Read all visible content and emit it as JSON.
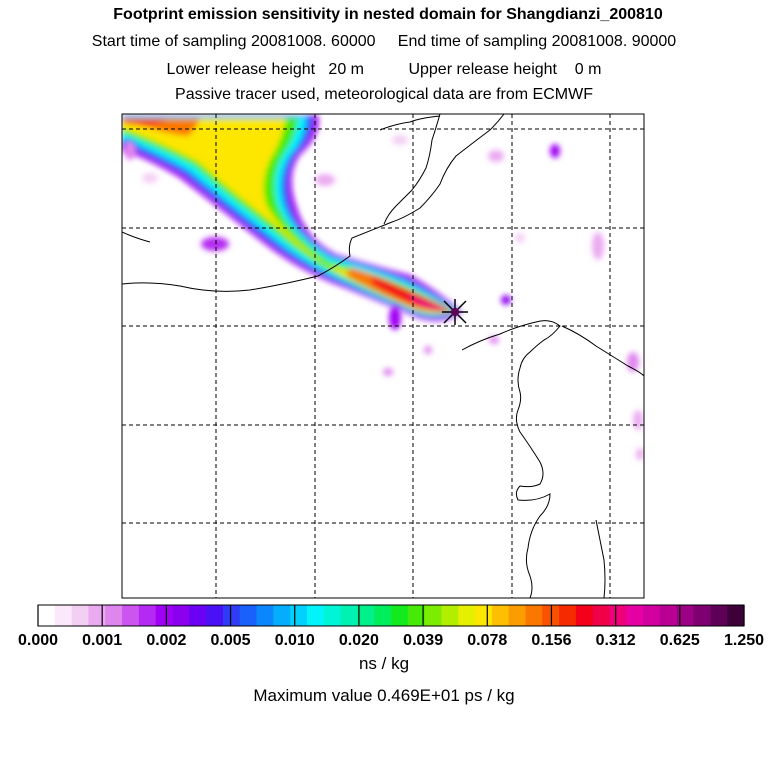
{
  "title": "Footprint emission sensitivity in nested domain for Shangdianzi_200810",
  "header": {
    "start_label": "Start time of sampling 20081008. 60000",
    "end_label": "End time of sampling 20081008. 90000",
    "lower_label": "Lower release height   20 m",
    "upper_label": "Upper release height    0 m",
    "tracer_note": "Passive tracer used, meteorological data are from ECMWF"
  },
  "colorbar": {
    "tick_labels": [
      "0.000",
      "0.001",
      "0.002",
      "0.005",
      "0.010",
      "0.020",
      "0.039",
      "0.078",
      "0.156",
      "0.312",
      "0.625",
      "1.250"
    ],
    "unit": "ns / kg",
    "colors": [
      "#ffffff",
      "#fbe8fb",
      "#f4cff4",
      "#eaaaf0",
      "#df86ee",
      "#cc55f0",
      "#b52af2",
      "#a000f4",
      "#8c00f0",
      "#6a00f4",
      "#4a10f6",
      "#2e3cf8",
      "#1a60fa",
      "#0a88fb",
      "#04aefc",
      "#00d2fd",
      "#00f4fa",
      "#00f4d8",
      "#00f2b2",
      "#00f08a",
      "#00ee5c",
      "#12ea1e",
      "#46ea06",
      "#7cec00",
      "#b2ee00",
      "#e4f000",
      "#fde600",
      "#fcc000",
      "#fb9c00",
      "#fa7800",
      "#f85200",
      "#f62a00",
      "#f4001a",
      "#f00048",
      "#ee0078",
      "#e600a4",
      "#d2009e",
      "#b80092",
      "#9c0084",
      "#7e0070",
      "#5e0056",
      "#3e0038"
    ]
  },
  "max_value_text": "Maximum value  0.469E+01 ps / kg"
}
